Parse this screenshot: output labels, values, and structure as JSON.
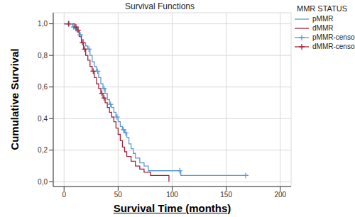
{
  "chart_data": {
    "type": "line",
    "title": "Survival Functions",
    "x_label": "Survival Time (months)",
    "y_label": "Cumulative Survival",
    "legend_title": "MMR STATUS",
    "legend": "right",
    "grid": true,
    "xlim": [
      -10,
      210
    ],
    "xticks": [
      0,
      50,
      100,
      150,
      200
    ],
    "ylim": [
      -0.03,
      1.07
    ],
    "yticks": [
      {
        "value": 0,
        "label": "0,0"
      },
      {
        "value": 0.2,
        "label": "0,2"
      },
      {
        "value": 0.4,
        "label": "0,4"
      },
      {
        "value": 0.6,
        "label": "0,6"
      },
      {
        "value": 0.8,
        "label": "0,8"
      },
      {
        "value": 1,
        "label": "1,0"
      }
    ],
    "series": [
      {
        "name": "pMMR",
        "type": "step",
        "color": "#5b9bd5",
        "x": [
          0,
          8,
          10,
          12,
          14,
          16,
          18,
          20,
          22,
          24,
          26,
          28,
          30,
          32,
          34,
          36,
          38,
          40,
          42,
          44,
          46,
          48,
          50,
          52,
          54,
          56,
          58,
          60,
          62,
          64,
          66,
          70,
          74,
          78,
          108,
          170
        ],
        "values": [
          1,
          0.98,
          0.97,
          0.95,
          0.93,
          0.9,
          0.88,
          0.86,
          0.84,
          0.8,
          0.76,
          0.73,
          0.7,
          0.66,
          0.62,
          0.59,
          0.56,
          0.52,
          0.49,
          0.47,
          0.44,
          0.41,
          0.38,
          0.35,
          0.33,
          0.31,
          0.28,
          0.24,
          0.21,
          0.18,
          0.15,
          0.12,
          0.1,
          0.07,
          0.04,
          0.04
        ]
      },
      {
        "name": "dMMR",
        "type": "step",
        "color": "#a3243b",
        "x": [
          0,
          10,
          12,
          14,
          16,
          18,
          20,
          22,
          24,
          26,
          28,
          30,
          32,
          34,
          36,
          38,
          40,
          42,
          44,
          46,
          48,
          50,
          52,
          54,
          56,
          58,
          62,
          66,
          70,
          74,
          80,
          97
        ],
        "values": [
          1,
          0.98,
          0.96,
          0.92,
          0.88,
          0.84,
          0.8,
          0.77,
          0.73,
          0.7,
          0.66,
          0.62,
          0.59,
          0.56,
          0.53,
          0.5,
          0.47,
          0.44,
          0.41,
          0.38,
          0.34,
          0.3,
          0.26,
          0.22,
          0.19,
          0.16,
          0.13,
          0.1,
          0.08,
          0.06,
          0.04,
          0
        ]
      },
      {
        "name": "pMMR-censored",
        "type": "scatter",
        "marker": "plus",
        "color": "#5b9bd5",
        "x": [
          5,
          9,
          11,
          15,
          23,
          31,
          37,
          43,
          49,
          55,
          57,
          107,
          168
        ],
        "values": [
          1,
          0.98,
          0.97,
          0.93,
          0.84,
          0.7,
          0.59,
          0.49,
          0.41,
          0.33,
          0.31,
          0.07,
          0.04
        ]
      },
      {
        "name": "dMMR-censored",
        "type": "scatter",
        "marker": "plus",
        "color": "#a3243b",
        "x": [
          4,
          11,
          13,
          17,
          19,
          27,
          35,
          37
        ],
        "values": [
          1,
          0.98,
          0.96,
          0.88,
          0.84,
          0.7,
          0.56,
          0.53
        ]
      }
    ]
  }
}
